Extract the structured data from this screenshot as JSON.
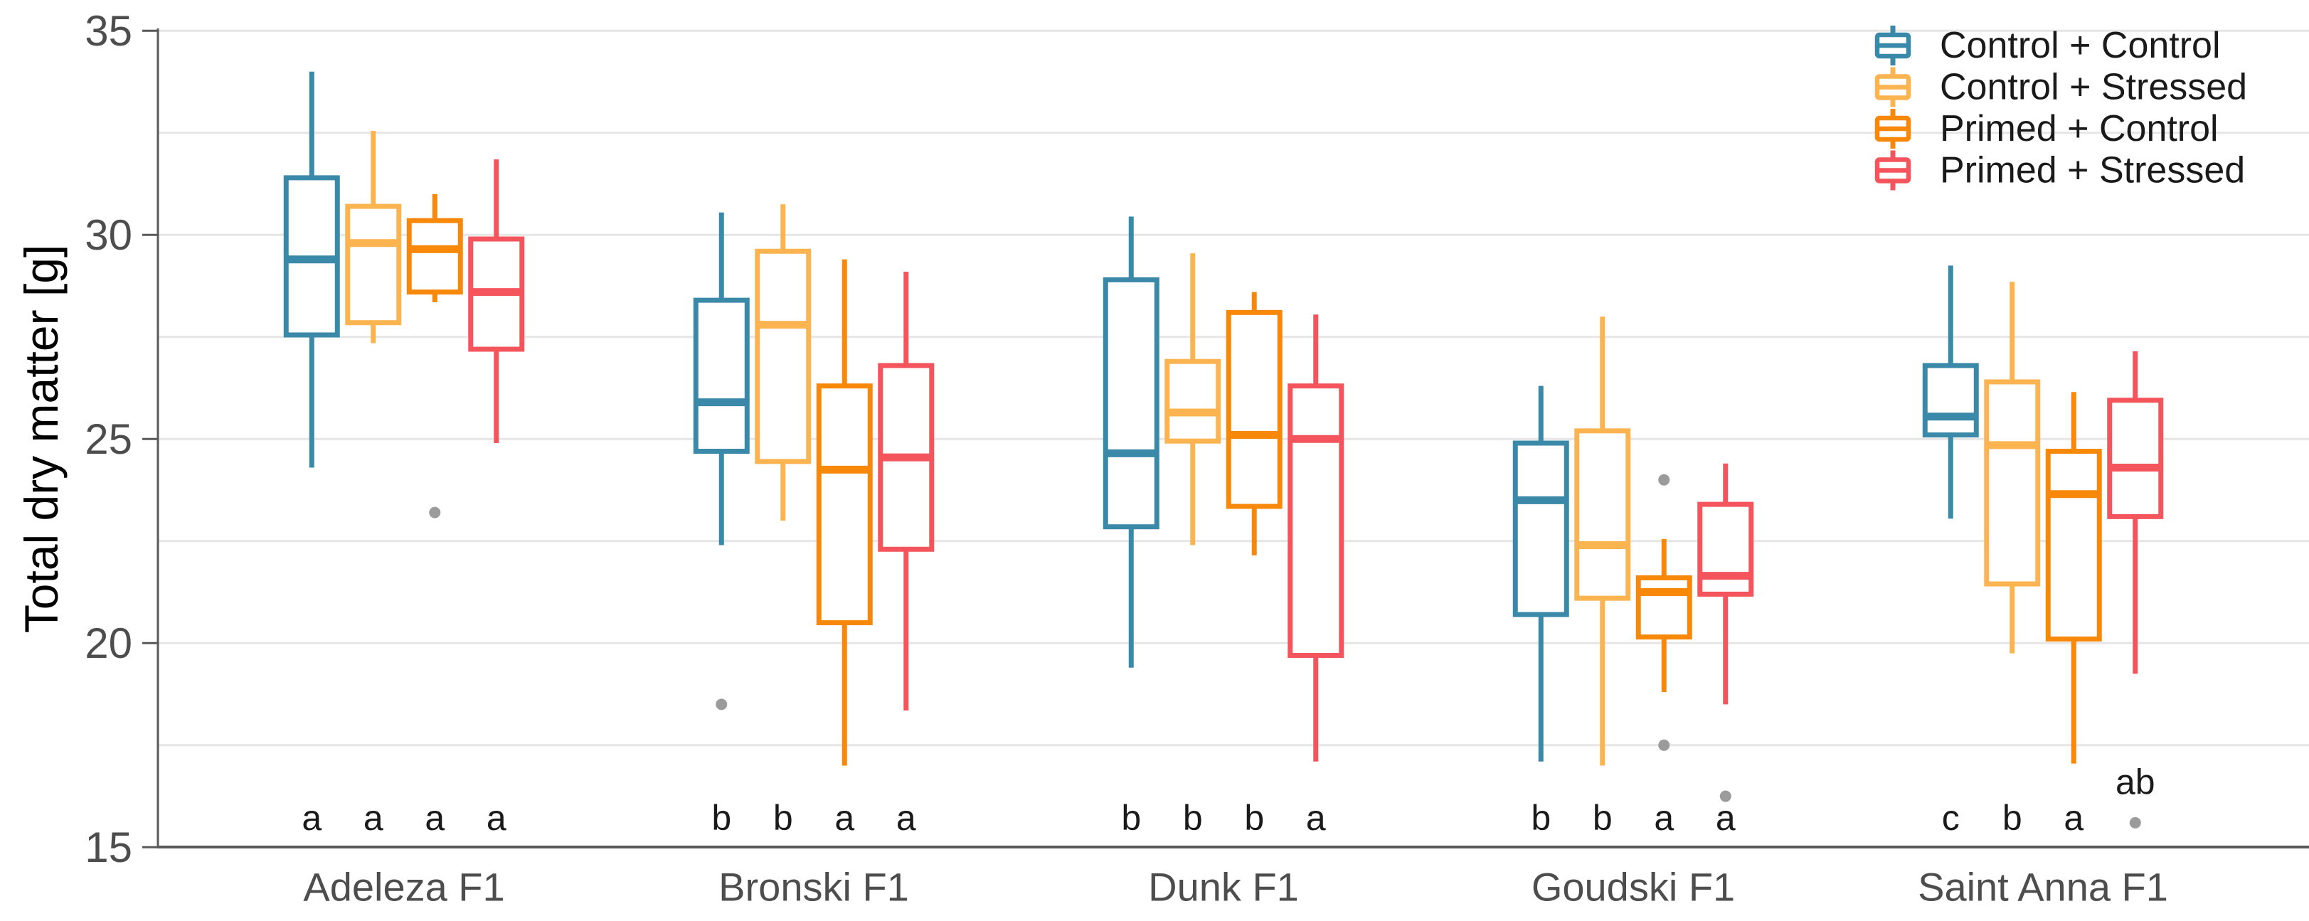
{
  "chart_data": {
    "type": "boxplot",
    "title": "",
    "xlabel": "",
    "ylabel": "Total dry matter [g]",
    "ylim": [
      15,
      35
    ],
    "yticks": [
      15,
      20,
      25,
      30,
      35
    ],
    "gridline_values": [
      17.5,
      20,
      22.5,
      25,
      27.5,
      30,
      32.5,
      35
    ],
    "grid": true,
    "legend_position": "top-right",
    "categories": [
      "Adeleza F1",
      "Bronski F1",
      "Dunk F1",
      "Goudski F1",
      "Saint Anna F1"
    ],
    "stats_format": [
      "whisker_low",
      "q1",
      "median",
      "q3",
      "whisker_high"
    ],
    "series": [
      {
        "name": "Control + Control",
        "color": "#3A89A8",
        "stats": [
          [
            24.3,
            27.55,
            29.4,
            31.4,
            34.0
          ],
          [
            22.4,
            24.7,
            25.9,
            28.4,
            30.55
          ],
          [
            19.4,
            22.85,
            24.65,
            28.9,
            30.45
          ],
          [
            17.1,
            20.7,
            23.5,
            24.9,
            26.3
          ],
          [
            23.05,
            25.1,
            25.55,
            26.8,
            29.25
          ]
        ],
        "outliers": [
          [],
          [
            18.5
          ],
          [],
          [],
          []
        ],
        "letters": [
          "a",
          "b",
          "b",
          "b",
          "c"
        ]
      },
      {
        "name": "Control + Stressed",
        "color": "#FBB450",
        "stats": [
          [
            27.35,
            27.85,
            29.8,
            30.7,
            32.55
          ],
          [
            23.0,
            24.45,
            27.8,
            29.6,
            30.75
          ],
          [
            22.4,
            24.95,
            25.65,
            26.9,
            29.55
          ],
          [
            17.0,
            21.1,
            22.4,
            25.2,
            28.0
          ],
          [
            19.75,
            21.45,
            24.85,
            26.4,
            28.85
          ]
        ],
        "outliers": [
          [],
          [],
          [],
          [],
          []
        ],
        "letters": [
          "a",
          "b",
          "b",
          "b",
          "b"
        ]
      },
      {
        "name": "Primed + Control",
        "color": "#F8880A",
        "stats": [
          [
            28.35,
            28.6,
            29.65,
            30.35,
            31.0
          ],
          [
            17.0,
            20.5,
            24.25,
            26.3,
            29.4
          ],
          [
            22.15,
            23.35,
            25.1,
            28.1,
            28.6
          ],
          [
            18.8,
            20.15,
            21.25,
            21.6,
            22.55
          ],
          [
            17.05,
            20.1,
            23.65,
            24.7,
            26.15
          ]
        ],
        "outliers": [
          [
            23.2
          ],
          [],
          [],
          [
            24.0,
            17.5
          ],
          []
        ],
        "letters": [
          "a",
          "a",
          "b",
          "a",
          "a"
        ]
      },
      {
        "name": "Primed + Stressed",
        "color": "#F4555C",
        "stats": [
          [
            24.9,
            27.2,
            28.6,
            29.9,
            31.85
          ],
          [
            18.35,
            22.3,
            24.55,
            26.8,
            29.1
          ],
          [
            17.1,
            19.7,
            25.0,
            26.3,
            28.05
          ],
          [
            18.5,
            21.2,
            21.65,
            23.4,
            24.4
          ],
          [
            19.25,
            23.1,
            24.3,
            25.95,
            27.15
          ]
        ],
        "outliers": [
          [],
          [],
          [],
          [
            16.25
          ],
          [
            15.6
          ]
        ],
        "letters": [
          "a",
          "a",
          "a",
          "a",
          {
            "text": "ab",
            "y": 16.6
          }
        ]
      }
    ],
    "letter_default_y": 15.72,
    "outlier_color": "#9B9B9B",
    "grid_color": "#E6E6E6",
    "axis_line_color": "#595959",
    "tick_text_color": "#4D4D4D",
    "category_text_color": "#4D4D4D",
    "letter_text_color": "#1A1A1A",
    "legend_text_color": "#1A1A1A",
    "axis_title_color": "#000000"
  }
}
